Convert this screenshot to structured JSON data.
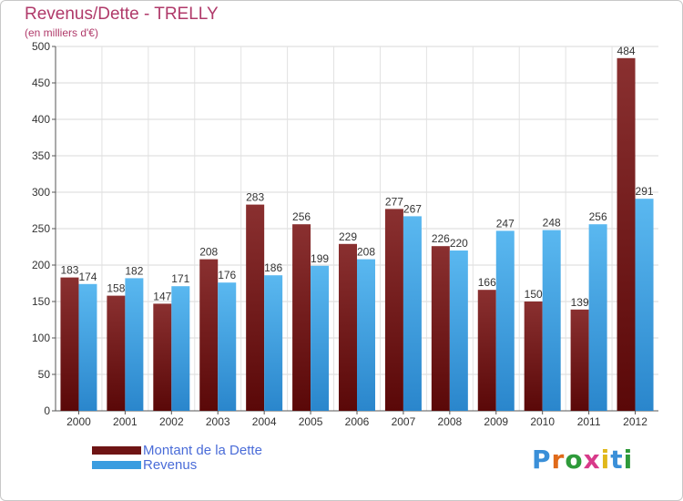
{
  "chart_data": {
    "type": "bar",
    "title": "Revenus/Dette - TRELLY",
    "subtitle": "(en milliers d'€)",
    "categories": [
      "2000",
      "2001",
      "2002",
      "2003",
      "2004",
      "2005",
      "2006",
      "2007",
      "2008",
      "2009",
      "2010",
      "2011",
      "2012"
    ],
    "series": [
      {
        "name": "Montant de la Dette",
        "color": "#7a1a1a",
        "values": [
          183,
          158,
          147,
          208,
          283,
          256,
          229,
          277,
          226,
          166,
          150,
          139,
          484
        ]
      },
      {
        "name": "Revenus",
        "color": "#3a9de0",
        "values": [
          174,
          182,
          171,
          176,
          186,
          199,
          208,
          267,
          220,
          247,
          248,
          256,
          291
        ]
      }
    ],
    "ylim": [
      0,
      500
    ],
    "yticks": [
      0,
      50,
      100,
      150,
      200,
      250,
      300,
      350,
      400,
      450,
      500
    ],
    "grid": true,
    "legend": "bottom-left"
  },
  "logo": {
    "text": "Proxiti",
    "letter_colors": [
      "#3a8fd8",
      "#e06a1a",
      "#2e9a3a",
      "#d83a8a",
      "#e0b81a",
      "#3a8fd8",
      "#2e9a3a"
    ]
  }
}
